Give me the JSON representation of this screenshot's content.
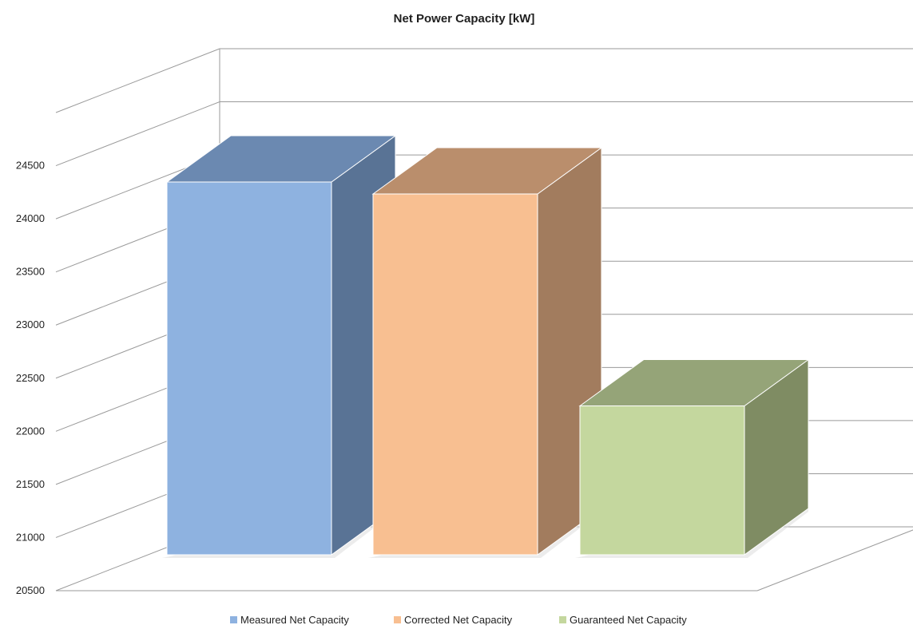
{
  "chart_data": {
    "type": "bar",
    "style": "3d-column",
    "title": "Net Power Capacity  [kW]",
    "xlabel": "",
    "ylabel": "",
    "categories": [
      "Measured Net Capacity",
      "Corrected Net Capacity",
      "Guaranteed Net Capacity"
    ],
    "values": [
      24180,
      24070,
      22120
    ],
    "ylim": [
      20500,
      25000
    ],
    "yticks": [
      "20500",
      "21000",
      "21500",
      "22000",
      "22500",
      "23000",
      "23500",
      "24000",
      "24500"
    ],
    "grid": true,
    "legend": {
      "position": "bottom",
      "entries": [
        "Measured Net Capacity",
        "Corrected Net Capacity",
        "Guaranteed Net Capacity"
      ]
    },
    "colors": [
      {
        "front": "#8eb2e0",
        "side": "#597395",
        "top": "#6b89b1"
      },
      {
        "front": "#f8bf91",
        "side": "#a27c5e",
        "top": "#ba8e6c"
      },
      {
        "front": "#c4d79e",
        "side": "#7f8c63",
        "top": "#95a478"
      }
    ]
  }
}
